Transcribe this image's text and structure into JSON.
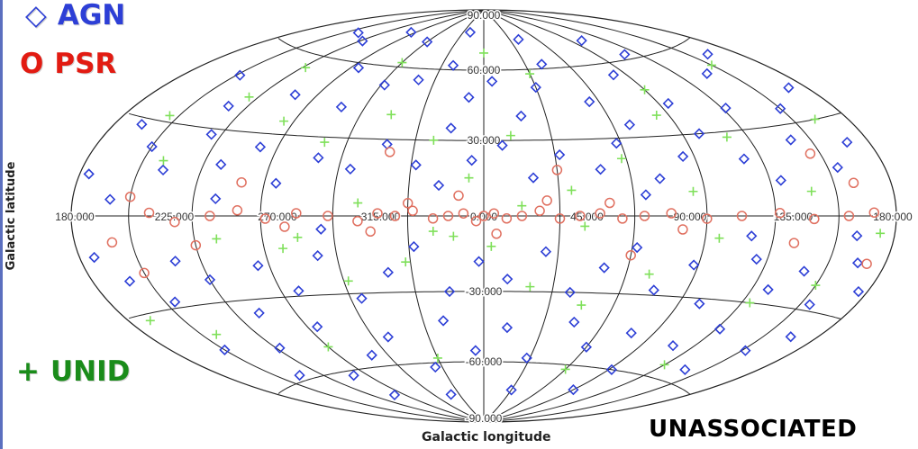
{
  "legend": {
    "agn": {
      "symbol": "◇",
      "label": "AGN",
      "color": "#2d3fd6"
    },
    "psr": {
      "symbol": "O",
      "label": "PSR",
      "color": "#e21b12"
    },
    "unid": {
      "symbol": "+",
      "label": "UNID",
      "color": "#1a8c1a"
    }
  },
  "footer_label": "UNASSOCIATED",
  "chart_data": {
    "type": "scatter",
    "projection": "Hammer-Aitoff (galactic)",
    "xlabel": "Galactic longitude",
    "ylabel": "Galactic latitude",
    "x_tick_labels": [
      "180.000",
      "135.000",
      "90.000",
      "45.000",
      "0.000",
      "315.000",
      "270.000",
      "225.000",
      "180.000"
    ],
    "y_tick_labels": [
      "90.000",
      "60.000",
      "30.000",
      "-30.000",
      "-60.000",
      "-90.000"
    ],
    "grid": true,
    "point_colors": {
      "agn": "#2d3fd6",
      "psr": "#e07060",
      "unid": "#7fe05a"
    },
    "series": [
      {
        "name": "AGN",
        "marker": "diamond",
        "values": [
          [
            148,
            48
          ],
          [
            130,
            38
          ],
          [
            118,
            68
          ],
          [
            102,
            45
          ],
          [
            85,
            58
          ],
          [
            72,
            42
          ],
          [
            58,
            52
          ],
          [
            40,
            55
          ],
          [
            22,
            62
          ],
          [
            15,
            35
          ],
          [
            8,
            48
          ],
          [
            -5,
            55
          ],
          [
            -18,
            40
          ],
          [
            -30,
            52
          ],
          [
            -42,
            62
          ],
          [
            -55,
            45
          ],
          [
            -68,
            35
          ],
          [
            -82,
            55
          ],
          [
            -95,
            42
          ],
          [
            -110,
            62
          ],
          [
            -122,
            38
          ],
          [
            -138,
            50
          ],
          [
            -150,
            35
          ],
          [
            -162,
            55
          ],
          [
            -170,
            40
          ],
          [
            165,
            28
          ],
          [
            150,
            22
          ],
          [
            138,
            15
          ],
          [
            125,
            28
          ],
          [
            112,
            18
          ],
          [
            98,
            25
          ],
          [
            85,
            12
          ],
          [
            70,
            22
          ],
          [
            55,
            18
          ],
          [
            42,
            28
          ],
          [
            28,
            20
          ],
          [
            18,
            12
          ],
          [
            5,
            22
          ],
          [
            -8,
            28
          ],
          [
            -20,
            15
          ],
          [
            -32,
            24
          ],
          [
            -48,
            18
          ],
          [
            -58,
            28
          ],
          [
            -72,
            14
          ],
          [
            -85,
            22
          ],
          [
            -98,
            30
          ],
          [
            -112,
            20
          ],
          [
            -125,
            12
          ],
          [
            -140,
            25
          ],
          [
            -155,
            15
          ],
          [
            -168,
            22
          ],
          [
            175,
            12
          ],
          [
            172,
            -12
          ],
          [
            160,
            -20
          ],
          [
            145,
            -28
          ],
          [
            132,
            -15
          ],
          [
            120,
            -22
          ],
          [
            108,
            -35
          ],
          [
            95,
            -18
          ],
          [
            82,
            -28
          ],
          [
            68,
            -15
          ],
          [
            55,
            -32
          ],
          [
            40,
            -22
          ],
          [
            28,
            -12
          ],
          [
            15,
            -30
          ],
          [
            2,
            -18
          ],
          [
            -10,
            -25
          ],
          [
            -25,
            -14
          ],
          [
            -38,
            -30
          ],
          [
            -50,
            -20
          ],
          [
            -62,
            -12
          ],
          [
            -75,
            -28
          ],
          [
            -88,
            -18
          ],
          [
            -100,
            -32
          ],
          [
            -115,
            -15
          ],
          [
            -128,
            -25
          ],
          [
            -140,
            -18
          ],
          [
            -155,
            -28
          ],
          [
            -165,
            -14
          ],
          [
            -175,
            -22
          ],
          [
            150,
            -45
          ],
          [
            135,
            -58
          ],
          [
            118,
            -48
          ],
          [
            100,
            -62
          ],
          [
            85,
            -42
          ],
          [
            70,
            -55
          ],
          [
            52,
            -48
          ],
          [
            35,
            -62
          ],
          [
            20,
            -42
          ],
          [
            5,
            -55
          ],
          [
            -12,
            -45
          ],
          [
            -28,
            -58
          ],
          [
            -45,
            -42
          ],
          [
            -60,
            -52
          ],
          [
            -78,
            -45
          ],
          [
            -92,
            -60
          ],
          [
            -108,
            -48
          ],
          [
            -122,
            -40
          ],
          [
            -138,
            -55
          ],
          [
            -152,
            -45
          ],
          [
            -165,
            -38
          ],
          [
            95,
            75
          ],
          [
            60,
            72
          ],
          [
            20,
            78
          ],
          [
            -40,
            74
          ],
          [
            -100,
            70
          ],
          [
            140,
            70
          ],
          [
            100,
            -72
          ],
          [
            40,
            -75
          ],
          [
            -30,
            -73
          ],
          [
            -90,
            -70
          ],
          [
            160,
            5
          ],
          [
            -160,
            -6
          ],
          [
            110,
            6
          ],
          [
            -110,
            -7
          ],
          [
            65,
            -5
          ],
          [
            -65,
            8
          ]
        ]
      },
      {
        "name": "PSR",
        "marker": "circle",
        "values": [
          [
            140,
            1
          ],
          [
            128,
            -2
          ],
          [
            112,
            0
          ],
          [
            100,
            2
          ],
          [
            88,
            -1
          ],
          [
            75,
            1
          ],
          [
            62,
            0
          ],
          [
            50,
            -2
          ],
          [
            42,
            1
          ],
          [
            35,
            0
          ],
          [
            28,
            2
          ],
          [
            20,
            -1
          ],
          [
            14,
            0
          ],
          [
            8,
            1
          ],
          [
            3,
            -2
          ],
          [
            0,
            0
          ],
          [
            -4,
            1
          ],
          [
            -9,
            -1
          ],
          [
            -15,
            0
          ],
          [
            -22,
            2
          ],
          [
            -30,
            -1
          ],
          [
            -38,
            0
          ],
          [
            -46,
            1
          ],
          [
            -55,
            -1
          ],
          [
            -64,
            0
          ],
          [
            -75,
            1
          ],
          [
            -90,
            -1
          ],
          [
            -105,
            0
          ],
          [
            -122,
            1
          ],
          [
            -138,
            -1
          ],
          [
            -155,
            0
          ],
          [
            -168,
            1
          ],
          [
            160,
            -8
          ],
          [
            150,
            6
          ],
          [
            120,
            -10
          ],
          [
            80,
            -4
          ],
          [
            45,
            -6
          ],
          [
            30,
            5
          ],
          [
            10,
            8
          ],
          [
            -5,
            -7
          ],
          [
            -25,
            6
          ],
          [
            -50,
            5
          ],
          [
            -80,
            -5
          ],
          [
            -130,
            -9
          ],
          [
            -160,
            10
          ],
          [
            -170,
            -14
          ],
          [
            150,
            -18
          ],
          [
            -145,
            20
          ],
          [
            100,
            12
          ],
          [
            -30,
            18
          ],
          [
            40,
            25
          ],
          [
            -60,
            -15
          ]
        ]
      },
      {
        "name": "UNID",
        "marker": "plus",
        "values": [
          [
            155,
            32
          ],
          [
            140,
            18
          ],
          [
            125,
            42
          ],
          [
            110,
            -8
          ],
          [
            95,
            35
          ],
          [
            82,
            -12
          ],
          [
            70,
            28
          ],
          [
            58,
            -25
          ],
          [
            45,
            40
          ],
          [
            32,
            -18
          ],
          [
            22,
            30
          ],
          [
            12,
            -8
          ],
          [
            6,
            15
          ],
          [
            -3,
            -12
          ],
          [
            -12,
            32
          ],
          [
            -20,
            -28
          ],
          [
            -35,
            10
          ],
          [
            -45,
            -35
          ],
          [
            -58,
            22
          ],
          [
            -70,
            -22
          ],
          [
            -84,
            38
          ],
          [
            -96,
            -8
          ],
          [
            -110,
            28
          ],
          [
            -124,
            -30
          ],
          [
            -138,
            8
          ],
          [
            -150,
            -22
          ],
          [
            -162,
            30
          ],
          [
            -172,
            -5
          ],
          [
            168,
            -32
          ],
          [
            142,
            -40
          ],
          [
            118,
            55
          ],
          [
            90,
            -50
          ],
          [
            60,
            62
          ],
          [
            30,
            -58
          ],
          [
            0,
            68
          ],
          [
            -30,
            58
          ],
          [
            -60,
            -62
          ],
          [
            -90,
            48
          ],
          [
            -120,
            -55
          ],
          [
            -150,
            52
          ],
          [
            50,
            5
          ],
          [
            -40,
            -4
          ],
          [
            20,
            -6
          ],
          [
            -15,
            4
          ],
          [
            75,
            -8
          ],
          [
            -85,
            9
          ]
        ]
      }
    ]
  }
}
